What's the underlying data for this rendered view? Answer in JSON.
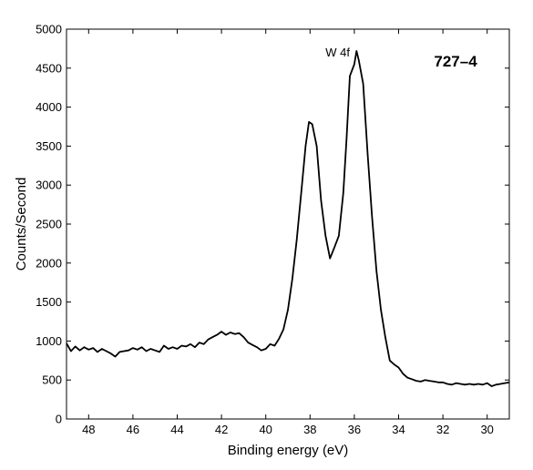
{
  "chart_data": {
    "type": "line",
    "title": "",
    "xlabel": "Binding energy (eV)",
    "ylabel": "Counts/Second",
    "xlim": [
      49,
      29
    ],
    "x_reversed": true,
    "ylim": [
      0,
      5000
    ],
    "xticks": [
      48,
      46,
      44,
      42,
      40,
      38,
      36,
      34,
      32,
      30
    ],
    "yticks": [
      0,
      500,
      1000,
      1500,
      2000,
      2500,
      3000,
      3500,
      4000,
      4500,
      5000
    ],
    "grid": false,
    "legend": "none",
    "annotations": [
      {
        "text": "W 4f",
        "x": 37.3,
        "y": 4650
      },
      {
        "text": "727–4",
        "x": 32.4,
        "y": 4520
      }
    ],
    "series": [
      {
        "color": "#000000",
        "points": [
          [
            49.0,
            970
          ],
          [
            48.8,
            870
          ],
          [
            48.6,
            930
          ],
          [
            48.4,
            880
          ],
          [
            48.2,
            920
          ],
          [
            48.0,
            890
          ],
          [
            47.8,
            910
          ],
          [
            47.6,
            860
          ],
          [
            47.4,
            900
          ],
          [
            47.2,
            870
          ],
          [
            47.0,
            840
          ],
          [
            46.8,
            800
          ],
          [
            46.6,
            860
          ],
          [
            46.4,
            870
          ],
          [
            46.2,
            880
          ],
          [
            46.0,
            910
          ],
          [
            45.8,
            890
          ],
          [
            45.6,
            920
          ],
          [
            45.4,
            870
          ],
          [
            45.2,
            900
          ],
          [
            45.0,
            880
          ],
          [
            44.8,
            860
          ],
          [
            44.6,
            940
          ],
          [
            44.4,
            900
          ],
          [
            44.2,
            920
          ],
          [
            44.0,
            900
          ],
          [
            43.8,
            940
          ],
          [
            43.6,
            930
          ],
          [
            43.4,
            960
          ],
          [
            43.2,
            920
          ],
          [
            43.0,
            980
          ],
          [
            42.8,
            960
          ],
          [
            42.6,
            1020
          ],
          [
            42.4,
            1050
          ],
          [
            42.2,
            1080
          ],
          [
            42.0,
            1120
          ],
          [
            41.8,
            1080
          ],
          [
            41.6,
            1110
          ],
          [
            41.4,
            1090
          ],
          [
            41.2,
            1100
          ],
          [
            41.0,
            1050
          ],
          [
            40.8,
            980
          ],
          [
            40.6,
            950
          ],
          [
            40.4,
            920
          ],
          [
            40.2,
            880
          ],
          [
            40.0,
            900
          ],
          [
            39.8,
            960
          ],
          [
            39.6,
            940
          ],
          [
            39.4,
            1030
          ],
          [
            39.2,
            1150
          ],
          [
            39.0,
            1400
          ],
          [
            38.8,
            1800
          ],
          [
            38.6,
            2300
          ],
          [
            38.4,
            2900
          ],
          [
            38.2,
            3500
          ],
          [
            38.05,
            3810
          ],
          [
            37.9,
            3780
          ],
          [
            37.7,
            3500
          ],
          [
            37.5,
            2800
          ],
          [
            37.3,
            2350
          ],
          [
            37.1,
            2060
          ],
          [
            36.9,
            2200
          ],
          [
            36.7,
            2350
          ],
          [
            36.5,
            2900
          ],
          [
            36.35,
            3600
          ],
          [
            36.2,
            4400
          ],
          [
            36.0,
            4550
          ],
          [
            35.9,
            4720
          ],
          [
            35.8,
            4600
          ],
          [
            35.6,
            4300
          ],
          [
            35.4,
            3400
          ],
          [
            35.2,
            2600
          ],
          [
            35.0,
            1900
          ],
          [
            34.8,
            1400
          ],
          [
            34.6,
            1050
          ],
          [
            34.4,
            750
          ],
          [
            34.2,
            700
          ],
          [
            34.0,
            660
          ],
          [
            33.8,
            580
          ],
          [
            33.6,
            530
          ],
          [
            33.4,
            510
          ],
          [
            33.2,
            490
          ],
          [
            33.0,
            480
          ],
          [
            32.8,
            500
          ],
          [
            32.6,
            490
          ],
          [
            32.4,
            480
          ],
          [
            32.2,
            470
          ],
          [
            32.0,
            470
          ],
          [
            31.8,
            450
          ],
          [
            31.6,
            440
          ],
          [
            31.4,
            460
          ],
          [
            31.2,
            450
          ],
          [
            31.0,
            440
          ],
          [
            30.8,
            450
          ],
          [
            30.6,
            440
          ],
          [
            30.4,
            450
          ],
          [
            30.2,
            440
          ],
          [
            30.0,
            460
          ],
          [
            29.8,
            420
          ],
          [
            29.6,
            440
          ],
          [
            29.4,
            450
          ],
          [
            29.2,
            460
          ],
          [
            29.0,
            470
          ]
        ]
      }
    ]
  }
}
